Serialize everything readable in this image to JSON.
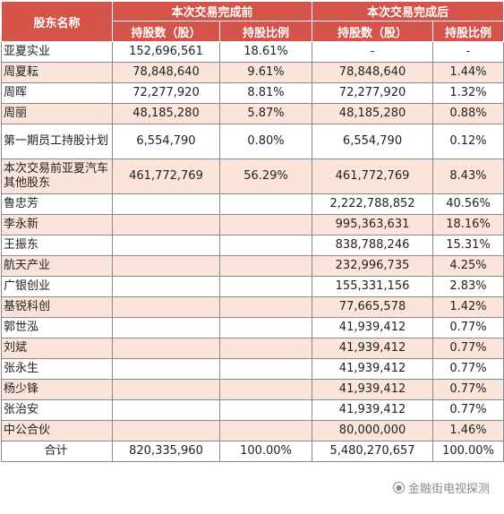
{
  "header": {
    "col_name": "股东名称",
    "group_before": "本次交易完成前",
    "group_after": "本次交易完成后",
    "shares_label": "持股数（股）",
    "ratio_label": "持股比例"
  },
  "rows": [
    {
      "name": "亚夏实业",
      "before_shares": "152,696,561",
      "before_ratio": "18.61%",
      "after_shares": "-",
      "after_ratio": "-"
    },
    {
      "name": "周夏耘",
      "before_shares": "78,848,640",
      "before_ratio": "9.61%",
      "after_shares": "78,848,640",
      "after_ratio": "1.44%"
    },
    {
      "name": "周晖",
      "before_shares": "72,277,920",
      "before_ratio": "8.81%",
      "after_shares": "72,277,920",
      "after_ratio": "1.32%"
    },
    {
      "name": "周丽",
      "before_shares": "48,185,280",
      "before_ratio": "5.87%",
      "after_shares": "48,185,280",
      "after_ratio": "0.88%"
    },
    {
      "name": "第一期员工持股计划",
      "before_shares": "6,554,790",
      "before_ratio": "0.80%",
      "after_shares": "6,554,790",
      "after_ratio": "0.12%"
    },
    {
      "name": "本次交易前亚夏汽车其他股东",
      "before_shares": "461,772,769",
      "before_ratio": "56.29%",
      "after_shares": "461,772,769",
      "after_ratio": "8.43%"
    },
    {
      "name": "鲁忠芳",
      "before_shares": "",
      "before_ratio": "",
      "after_shares": "2,222,788,852",
      "after_ratio": "40.56%"
    },
    {
      "name": "李永新",
      "before_shares": "",
      "before_ratio": "",
      "after_shares": "995,363,631",
      "after_ratio": "18.16%"
    },
    {
      "name": "王振东",
      "before_shares": "",
      "before_ratio": "",
      "after_shares": "838,788,246",
      "after_ratio": "15.31%"
    },
    {
      "name": "航天产业",
      "before_shares": "",
      "before_ratio": "",
      "after_shares": "232,996,735",
      "after_ratio": "4.25%"
    },
    {
      "name": "广银创业",
      "before_shares": "",
      "before_ratio": "",
      "after_shares": "155,331,156",
      "after_ratio": "2.83%"
    },
    {
      "name": "基锐科创",
      "before_shares": "",
      "before_ratio": "",
      "after_shares": "77,665,578",
      "after_ratio": "1.42%"
    },
    {
      "name": "郭世泓",
      "before_shares": "",
      "before_ratio": "",
      "after_shares": "41,939,412",
      "after_ratio": "0.77%"
    },
    {
      "name": "刘斌",
      "before_shares": "",
      "before_ratio": "",
      "after_shares": "41,939,412",
      "after_ratio": "0.77%"
    },
    {
      "name": "张永生",
      "before_shares": "",
      "before_ratio": "",
      "after_shares": "41,939,412",
      "after_ratio": "0.77%"
    },
    {
      "name": "杨少锋",
      "before_shares": "",
      "before_ratio": "",
      "after_shares": "41,939,412",
      "after_ratio": "0.77%"
    },
    {
      "name": "张治安",
      "before_shares": "",
      "before_ratio": "",
      "after_shares": "41,939,412",
      "after_ratio": "0.77%"
    },
    {
      "name": "中公合伙",
      "before_shares": "",
      "before_ratio": "",
      "after_shares": "80,000,000",
      "after_ratio": "1.46%"
    }
  ],
  "total": {
    "name": "合计",
    "before_shares": "820,335,960",
    "before_ratio": "100.00%",
    "after_shares": "5,480,270,657",
    "after_ratio": "100.00%"
  },
  "watermark": {
    "text": "金融街电视探测",
    "icon": "wechat-logo-icon"
  },
  "colors": {
    "header_bg": "#d4544b",
    "stripe_bg": "#fbe4da",
    "border": "#8a8a8a"
  }
}
